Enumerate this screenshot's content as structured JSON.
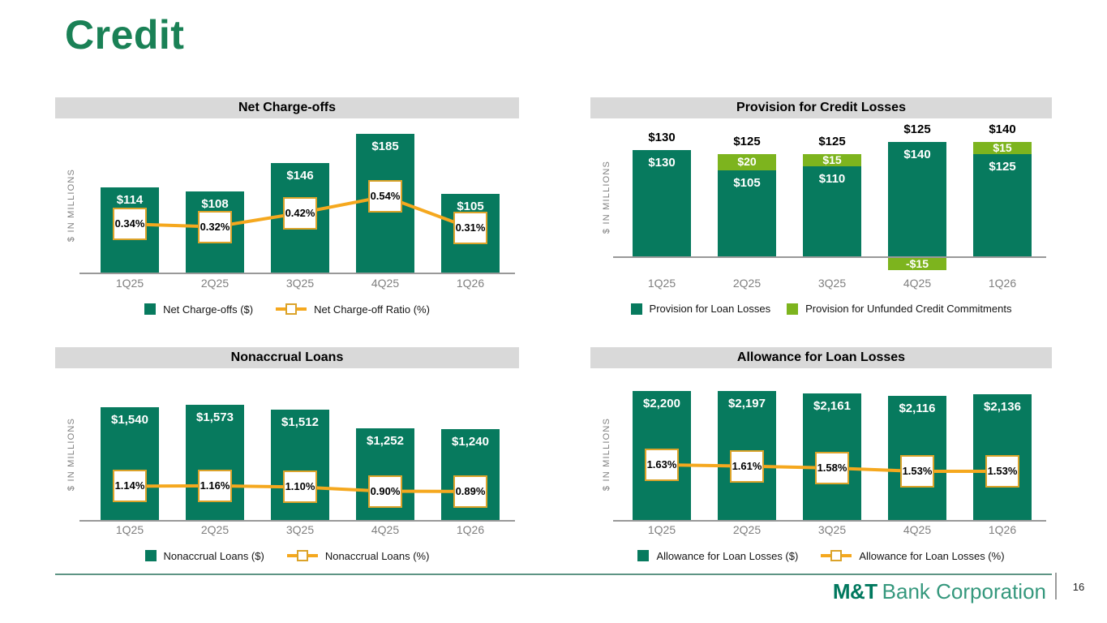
{
  "title": "Credit",
  "colors": {
    "dark_green": "#077A5E",
    "light_green": "#7DB41E",
    "gold_line": "#F5A81E",
    "gold_border": "#DBA32A",
    "header_gray": "#D9D9D9",
    "title_green": "#1A8156",
    "logo_green": "#00785E",
    "logo_light_green": "#35987D",
    "axis_gray": "#999999",
    "label_gray": "#7F7F7F"
  },
  "footer": {
    "logo_bold": "M&T",
    "logo_text": "Bank Corporation",
    "page_number": "16"
  },
  "chart_data": [
    {
      "type": "bar",
      "title": "Net Charge-offs",
      "ylabel": "$ IN MILLIONS",
      "categories": [
        "1Q25",
        "2Q25",
        "3Q25",
        "4Q25",
        "1Q26"
      ],
      "series": [
        {
          "kind": "bar",
          "name": "Net Charge-offs ($)",
          "values": [
            114,
            108,
            146,
            185,
            105
          ],
          "labels": [
            "$114",
            "$108",
            "$146",
            "$185",
            "$105"
          ]
        },
        {
          "kind": "line",
          "name": "Net Charge-off Ratio (%)",
          "values": [
            0.34,
            0.32,
            0.42,
            0.54,
            0.31
          ],
          "labels": [
            "0.34%",
            "0.32%",
            "0.42%",
            "0.54%",
            "0.31%"
          ]
        }
      ],
      "legend": [
        "Net Charge-offs ($)",
        "Net Charge-off Ratio (%)"
      ]
    },
    {
      "type": "stacked-bar",
      "title": "Provision for Credit Losses",
      "ylabel": "$ IN MILLIONS",
      "categories": [
        "1Q25",
        "2Q25",
        "3Q25",
        "4Q25",
        "1Q26"
      ],
      "series": [
        {
          "kind": "bar",
          "name": "Provision for Loan Losses",
          "color_key": "dark_green",
          "values": [
            130,
            105,
            110,
            140,
            125
          ],
          "labels": [
            "$130",
            "$105",
            "$110",
            "$140",
            "$125"
          ]
        },
        {
          "kind": "bar",
          "name": "Provision for Unfunded Credit Commitments",
          "color_key": "light_green",
          "values": [
            0,
            20,
            15,
            -15,
            15
          ],
          "labels": [
            "",
            "$20",
            "$15",
            "-$15",
            "$15"
          ]
        }
      ],
      "totals": [
        "$130",
        "$125",
        "$125",
        "$125",
        "$140"
      ],
      "legend": [
        "Provision for Loan Losses",
        "Provision for Unfunded Credit Commitments"
      ]
    },
    {
      "type": "bar",
      "title": "Nonaccrual Loans",
      "ylabel": "$ IN MILLIONS",
      "categories": [
        "1Q25",
        "2Q25",
        "3Q25",
        "4Q25",
        "1Q26"
      ],
      "series": [
        {
          "kind": "bar",
          "name": "Nonaccrual Loans ($)",
          "values": [
            1540,
            1573,
            1512,
            1252,
            1240
          ],
          "labels": [
            "$1,540",
            "$1,573",
            "$1,512",
            "$1,252",
            "$1,240"
          ]
        },
        {
          "kind": "line",
          "name": "Nonaccrual Loans (%)",
          "values": [
            1.14,
            1.16,
            1.1,
            0.9,
            0.89
          ],
          "labels": [
            "1.14%",
            "1.16%",
            "1.10%",
            "0.90%",
            "0.89%"
          ]
        }
      ],
      "legend": [
        "Nonaccrual Loans ($)",
        "Nonaccrual Loans (%)"
      ]
    },
    {
      "type": "bar",
      "title": "Allowance for Loan Losses",
      "ylabel": "$ IN MILLIONS",
      "categories": [
        "1Q25",
        "2Q25",
        "3Q25",
        "4Q25",
        "1Q26"
      ],
      "series": [
        {
          "kind": "bar",
          "name": "Allowance for Loan Losses ($)",
          "values": [
            2200,
            2197,
            2161,
            2116,
            2136
          ],
          "labels": [
            "$2,200",
            "$2,197",
            "$2,161",
            "$2,116",
            "$2,136"
          ]
        },
        {
          "kind": "line",
          "name": "Allowance for Loan Losses (%)",
          "values": [
            1.63,
            1.61,
            1.58,
            1.53,
            1.53
          ],
          "labels": [
            "1.63%",
            "1.61%",
            "1.58%",
            "1.53%",
            "1.53%"
          ]
        }
      ],
      "legend": [
        "Allowance for Loan Losses ($)",
        "Allowance for Loan Losses (%)"
      ]
    }
  ]
}
